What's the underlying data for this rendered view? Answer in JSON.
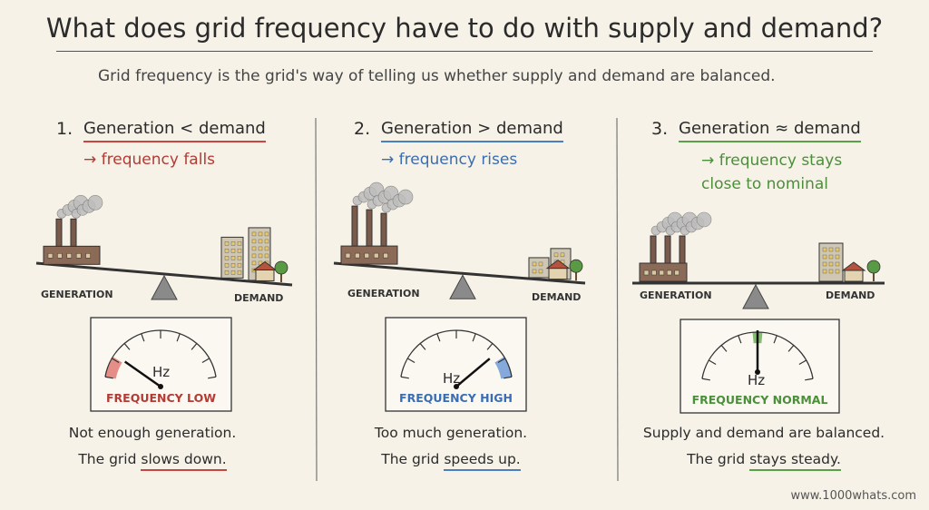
{
  "title": "What does grid frequency have to do with supply and demand?",
  "subtitle": "Grid frequency is the grid's way of telling us whether supply and demand are balanced.",
  "panels": [
    {
      "number": "1.",
      "heading": "Generation < demand",
      "result": "→ frequency falls",
      "left_label": "GENERATION",
      "right_label": "DEMAND",
      "gauge_unit": "Hz",
      "gauge_label": "FREQUENCY LOW",
      "caption_line1": "Not enough generation.",
      "caption_prefix": "The grid",
      "caption_highlight": "slows down."
    },
    {
      "number": "2.",
      "heading": "Generation > demand",
      "result": "→ frequency rises",
      "left_label": "GENERATION",
      "right_label": "DEMAND",
      "gauge_unit": "Hz",
      "gauge_label": "FREQUENCY HIGH",
      "caption_line1": "Too much generation.",
      "caption_prefix": "The grid",
      "caption_highlight": "speeds up."
    },
    {
      "number": "3.",
      "heading": "Generation ≈ demand",
      "result": "→ frequency stays close to nominal",
      "left_label": "GENERATION",
      "right_label": "DEMAND",
      "gauge_unit": "Hz",
      "gauge_label": "FREQUENCY NORMAL",
      "caption_line1": "Supply and demand are balanced.",
      "caption_prefix": "The grid",
      "caption_highlight": "stays steady."
    }
  ],
  "footer": "www.1000whats.com"
}
